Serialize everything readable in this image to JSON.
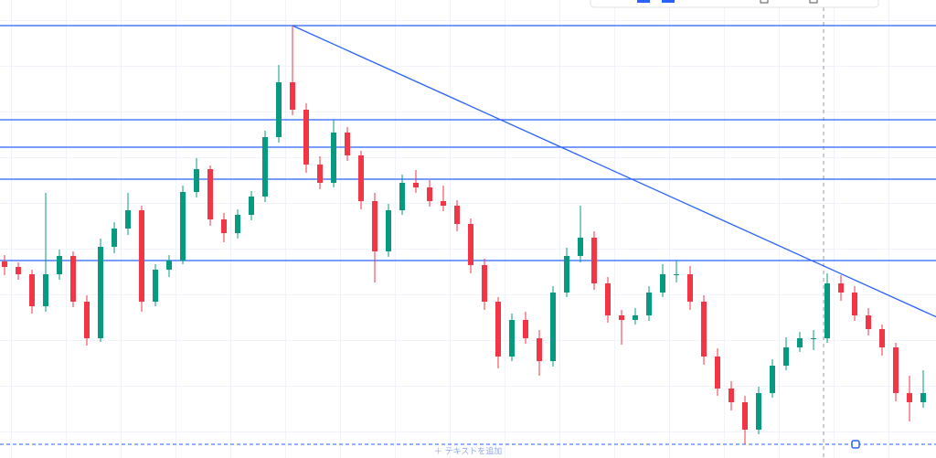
{
  "chart_data": {
    "type": "candlestick",
    "ylim": [
      0,
      501
    ],
    "up_color": "#089981",
    "down_color": "#f23645",
    "line_color": "#2962ff",
    "ohlc": [
      [
        215,
        222,
        200,
        209
      ],
      [
        209,
        214,
        195,
        201
      ],
      [
        201,
        206,
        158,
        166
      ],
      [
        166,
        290,
        160,
        201
      ],
      [
        201,
        228,
        195,
        221
      ],
      [
        221,
        226,
        165,
        171
      ],
      [
        171,
        178,
        123,
        131
      ],
      [
        131,
        240,
        127,
        231
      ],
      [
        231,
        258,
        224,
        251
      ],
      [
        251,
        290,
        244,
        271
      ],
      [
        271,
        276,
        160,
        171
      ],
      [
        171,
        212,
        166,
        206
      ],
      [
        206,
        222,
        198,
        216
      ],
      [
        216,
        298,
        212,
        291
      ],
      [
        291,
        328,
        285,
        316
      ],
      [
        316,
        320,
        254,
        261
      ],
      [
        261,
        268,
        236,
        246
      ],
      [
        246,
        272,
        240,
        266
      ],
      [
        266,
        292,
        260,
        286
      ],
      [
        286,
        358,
        280,
        351
      ],
      [
        351,
        430,
        345,
        411
      ],
      [
        411,
        473,
        375,
        381
      ],
      [
        381,
        388,
        312,
        321
      ],
      [
        321,
        330,
        294,
        301
      ],
      [
        301,
        370,
        296,
        356
      ],
      [
        356,
        362,
        325,
        331
      ],
      [
        331,
        336,
        272,
        281
      ],
      [
        281,
        290,
        192,
        226
      ],
      [
        226,
        278,
        220,
        271
      ],
      [
        271,
        310,
        266,
        301
      ],
      [
        301,
        315,
        290,
        296
      ],
      [
        296,
        304,
        275,
        281
      ],
      [
        281,
        298,
        270,
        276
      ],
      [
        276,
        282,
        248,
        256
      ],
      [
        256,
        262,
        202,
        211
      ],
      [
        211,
        218,
        162,
        171
      ],
      [
        171,
        176,
        98,
        111
      ],
      [
        111,
        158,
        106,
        151
      ],
      [
        151,
        160,
        125,
        131
      ],
      [
        131,
        140,
        90,
        106
      ],
      [
        106,
        188,
        100,
        181
      ],
      [
        181,
        230,
        176,
        221
      ],
      [
        221,
        276,
        214,
        241
      ],
      [
        241,
        248,
        184,
        191
      ],
      [
        191,
        198,
        148,
        156
      ],
      [
        156,
        162,
        124,
        151
      ],
      [
        151,
        164,
        146,
        156
      ],
      [
        156,
        188,
        150,
        181
      ],
      [
        181,
        212,
        176,
        201
      ],
      [
        201,
        216,
        192,
        201
      ],
      [
        201,
        210,
        162,
        171
      ],
      [
        171,
        178,
        102,
        111
      ],
      [
        111,
        120,
        68,
        76
      ],
      [
        76,
        84,
        52,
        61
      ],
      [
        61,
        68,
        15,
        31
      ],
      [
        31,
        78,
        26,
        71
      ],
      [
        71,
        108,
        66,
        101
      ],
      [
        101,
        132,
        96,
        121
      ],
      [
        121,
        138,
        116,
        131
      ],
      [
        131,
        140,
        118,
        131
      ],
      [
        131,
        202,
        126,
        191
      ],
      [
        191,
        200,
        172,
        181
      ],
      [
        181,
        188,
        150,
        156
      ],
      [
        156,
        164,
        134,
        141
      ],
      [
        141,
        146,
        112,
        121
      ],
      [
        121,
        126,
        62,
        71
      ],
      [
        71,
        90,
        40,
        61
      ],
      [
        61,
        96,
        55,
        71
      ]
    ],
    "levels": [
      473,
      370,
      340,
      305,
      216
    ],
    "dashed_level": 15,
    "trendline": {
      "from": [
        21,
        473
      ],
      "to": [
        68,
        154
      ]
    },
    "add_text_label": "＋ テキストを追加"
  }
}
